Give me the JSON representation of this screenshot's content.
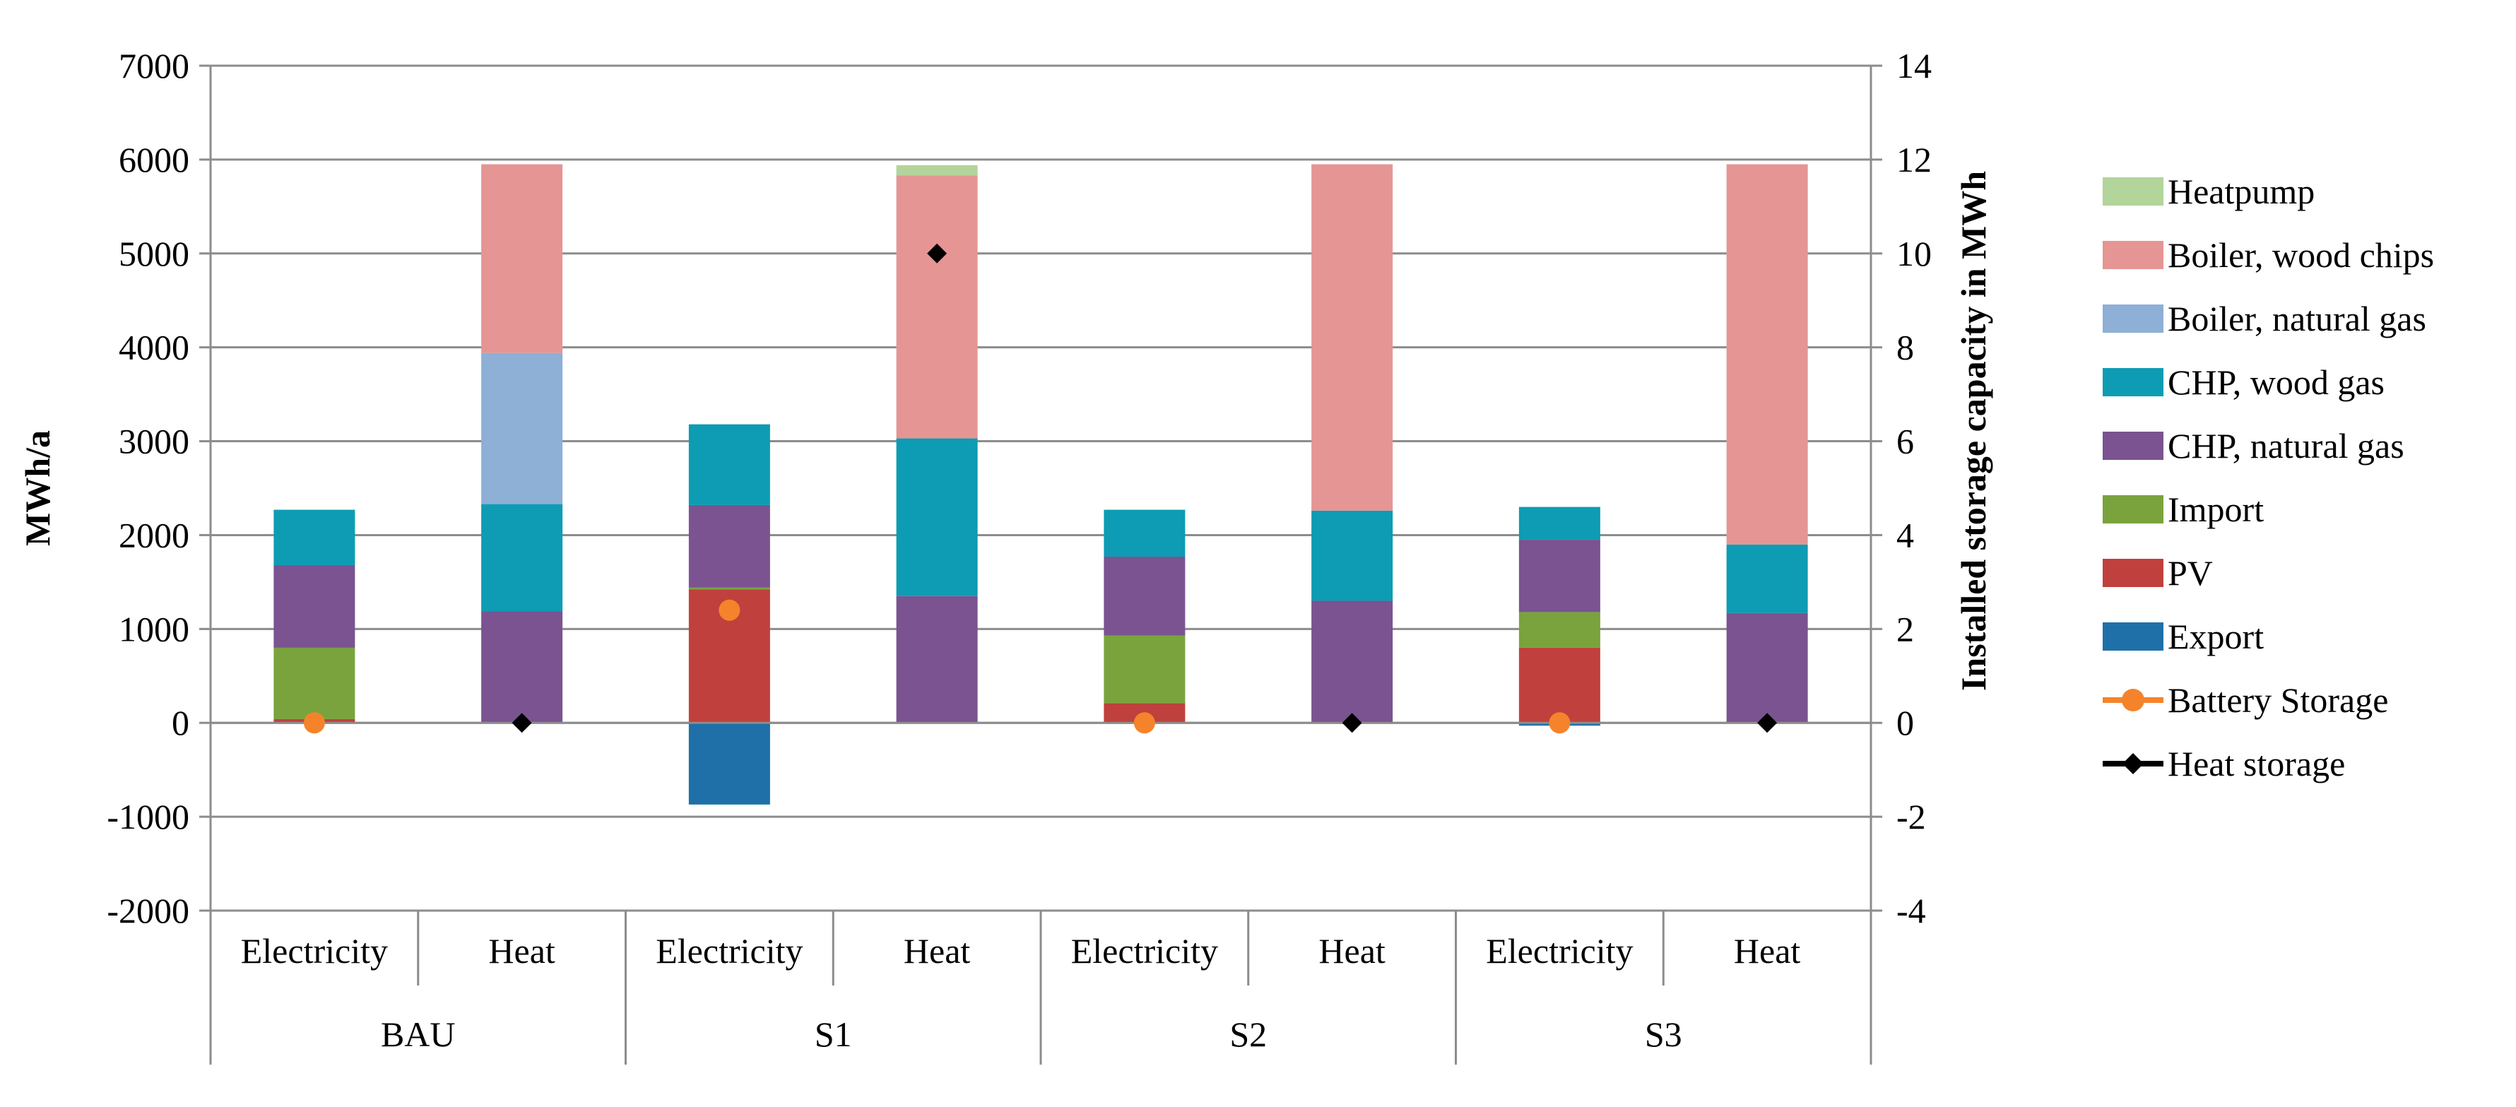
{
  "chart_data": {
    "type": "bar",
    "stacked": true,
    "groups": [
      "BAU",
      "S1",
      "S2",
      "S3"
    ],
    "subcategories": [
      "Electricity",
      "Heat",
      "Electricity",
      "Heat",
      "Electricity",
      "Heat",
      "Electricity",
      "Heat"
    ],
    "ylabel": "MWh/a",
    "y2label": "Installed storage capacity in MWh",
    "ylim": [
      -2000,
      7000
    ],
    "y2lim": [
      -4,
      14
    ],
    "yticks": [
      "7000",
      "6000",
      "5000",
      "4000",
      "3000",
      "2000",
      "1000",
      "0",
      "-1000",
      "-2000"
    ],
    "y2ticks": [
      "14",
      "12",
      "10",
      "8",
      "6",
      "4",
      "2",
      "0",
      "-2",
      "-4"
    ],
    "grid": true,
    "legend_position": "right",
    "series": [
      {
        "name": "Export",
        "color": "#1f6fa8",
        "values": [
          0,
          0,
          -870,
          0,
          0,
          0,
          -30,
          0
        ]
      },
      {
        "name": "PV",
        "color": "#c0403d",
        "values": [
          40,
          0,
          1420,
          0,
          210,
          0,
          800,
          0
        ]
      },
      {
        "name": "Import",
        "color": "#7aa33d",
        "values": [
          760,
          0,
          20,
          0,
          720,
          0,
          380,
          0
        ]
      },
      {
        "name": "CHP, natural gas",
        "color": "#7a5390",
        "values": [
          880,
          1190,
          880,
          1350,
          840,
          1300,
          770,
          1170
        ]
      },
      {
        "name": "CHP, wood gas",
        "color": "#0d9cb3",
        "values": [
          590,
          1140,
          860,
          1680,
          500,
          960,
          350,
          730
        ]
      },
      {
        "name": "Boiler, natural gas",
        "color": "#8eafd6",
        "values": [
          0,
          1610,
          0,
          0,
          0,
          0,
          0,
          0
        ]
      },
      {
        "name": "Boiler, wood chips",
        "color": "#e59593",
        "values": [
          0,
          2010,
          0,
          2800,
          0,
          3690,
          0,
          4050
        ]
      },
      {
        "name": "Heatpump",
        "color": "#b3d49a",
        "values": [
          0,
          0,
          0,
          110,
          0,
          0,
          0,
          0
        ]
      }
    ],
    "storage": [
      {
        "name": "Battery Storage",
        "color": "#f5832b",
        "marker": "circle",
        "axis": "secondary",
        "values": [
          0,
          null,
          2.4,
          null,
          0,
          null,
          0,
          null
        ]
      },
      {
        "name": "Heat storage",
        "color": "#000000",
        "marker": "diamond",
        "axis": "secondary",
        "values": [
          null,
          0,
          null,
          10,
          null,
          0,
          null,
          0
        ]
      }
    ],
    "legend_order": [
      "Heatpump",
      "Boiler, wood chips",
      "Boiler, natural gas",
      "CHP, wood gas",
      "CHP, natural gas",
      "Import",
      "PV",
      "Export",
      "Battery Storage",
      "Heat storage"
    ]
  }
}
